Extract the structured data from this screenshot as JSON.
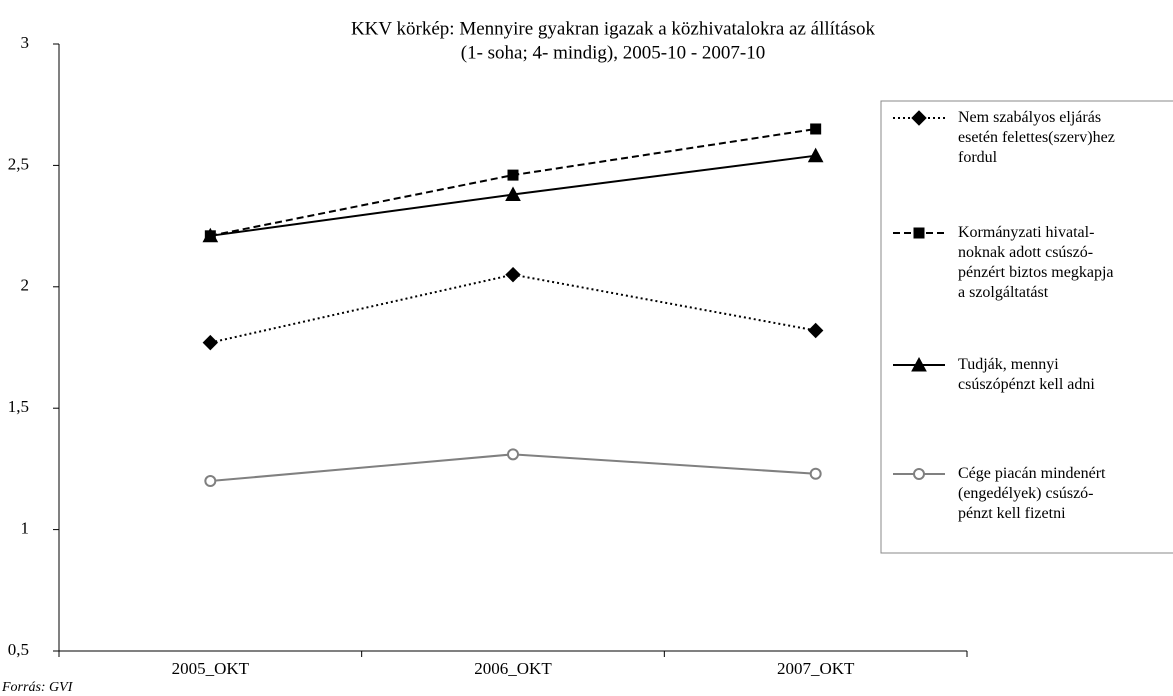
{
  "chart_data": {
    "type": "line",
    "title": "KKV körkép: Mennyire gyakran igazak a közhivatalokra az állítások",
    "subtitle": "(1- soha; 4- mindig), 2005-10 - 2007-10",
    "source": "Forrás: GVI",
    "categories": [
      "2005_OKT",
      "2006_OKT",
      "2007_OKT"
    ],
    "series": [
      {
        "name": "Nem szabályos eljárás\nesetén felettes(szerv)hez\nfordul",
        "color": "#000000",
        "dash": "dotted",
        "marker": "diamond",
        "values": [
          1.77,
          2.05,
          1.82
        ]
      },
      {
        "name": "Kormányzati hivatal-\nnoknak adott csúszó-\npénzért biztos megkapja\na szolgáltatást",
        "color": "#000000",
        "dash": "dashed",
        "marker": "square",
        "values": [
          2.21,
          2.46,
          2.65
        ]
      },
      {
        "name": "Tudják, mennyi\ncsúszópénzt kell adni",
        "color": "#000000",
        "dash": "solid",
        "marker": "triangle",
        "values": [
          2.21,
          2.38,
          2.54
        ]
      },
      {
        "name": "Cége piacán mindenért\n(engedélyek) csúszó-\npénzt kell fizetni",
        "color": "#808080",
        "dash": "solid",
        "marker": "circle",
        "values": [
          1.2,
          1.31,
          1.23
        ]
      }
    ],
    "ylim": [
      0.5,
      3
    ],
    "yticks": [
      {
        "value": 0.5,
        "label": "0,5"
      },
      1,
      {
        "value": 1.5,
        "label": "1,5"
      },
      2,
      {
        "value": 2.5,
        "label": "2,5"
      },
      3
    ],
    "grid": false,
    "legend": "right"
  }
}
